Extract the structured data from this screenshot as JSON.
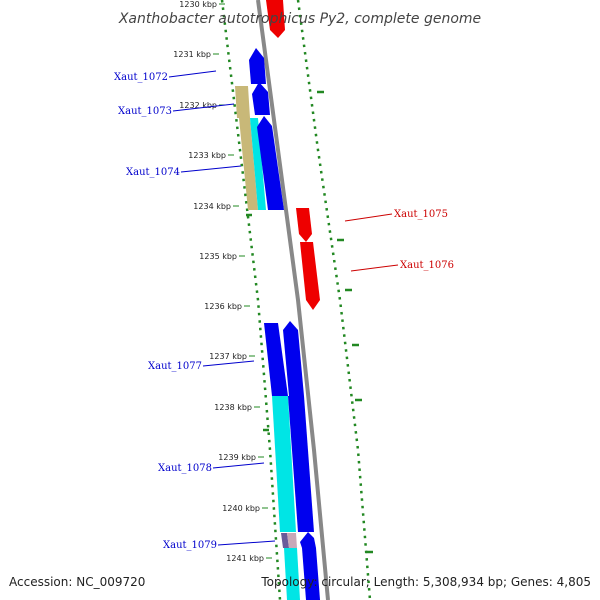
{
  "title": "Xanthobacter autotrophicus Py2, complete genome",
  "footer": {
    "accession": "Accession: NC_009720",
    "summary": "Topology: circular; Length: 5,308,934 bp; Genes: 4,805"
  },
  "ticks": [
    "1230 kbp",
    "1231 kbp",
    "1232 kbp",
    "1233 kbp",
    "1234 kbp",
    "1235 kbp",
    "1236 kbp",
    "1237 kbp",
    "1238 kbp",
    "1239 kbp",
    "1240 kbp",
    "1241 kbp"
  ],
  "genes": [
    {
      "id": "Xaut_1072",
      "color": "#0000cc"
    },
    {
      "id": "Xaut_1073",
      "color": "#0000cc"
    },
    {
      "id": "Xaut_1074",
      "color": "#0000cc"
    },
    {
      "id": "Xaut_1075",
      "color": "#cc0000"
    },
    {
      "id": "Xaut_1076",
      "color": "#cc0000"
    },
    {
      "id": "Xaut_1077",
      "color": "#0000cc"
    },
    {
      "id": "Xaut_1078",
      "color": "#0000cc"
    },
    {
      "id": "Xaut_1079",
      "color": "#0000cc"
    }
  ],
  "colors": {
    "forward_cds": "#0000ee",
    "reverse_cds": "#ee0000",
    "cog_cyan": "#00e5e5",
    "cog_khaki": "#c8b878",
    "cog_purple": "#6a5a9a",
    "gc_skew": "#228822",
    "backbone": "#888888"
  }
}
